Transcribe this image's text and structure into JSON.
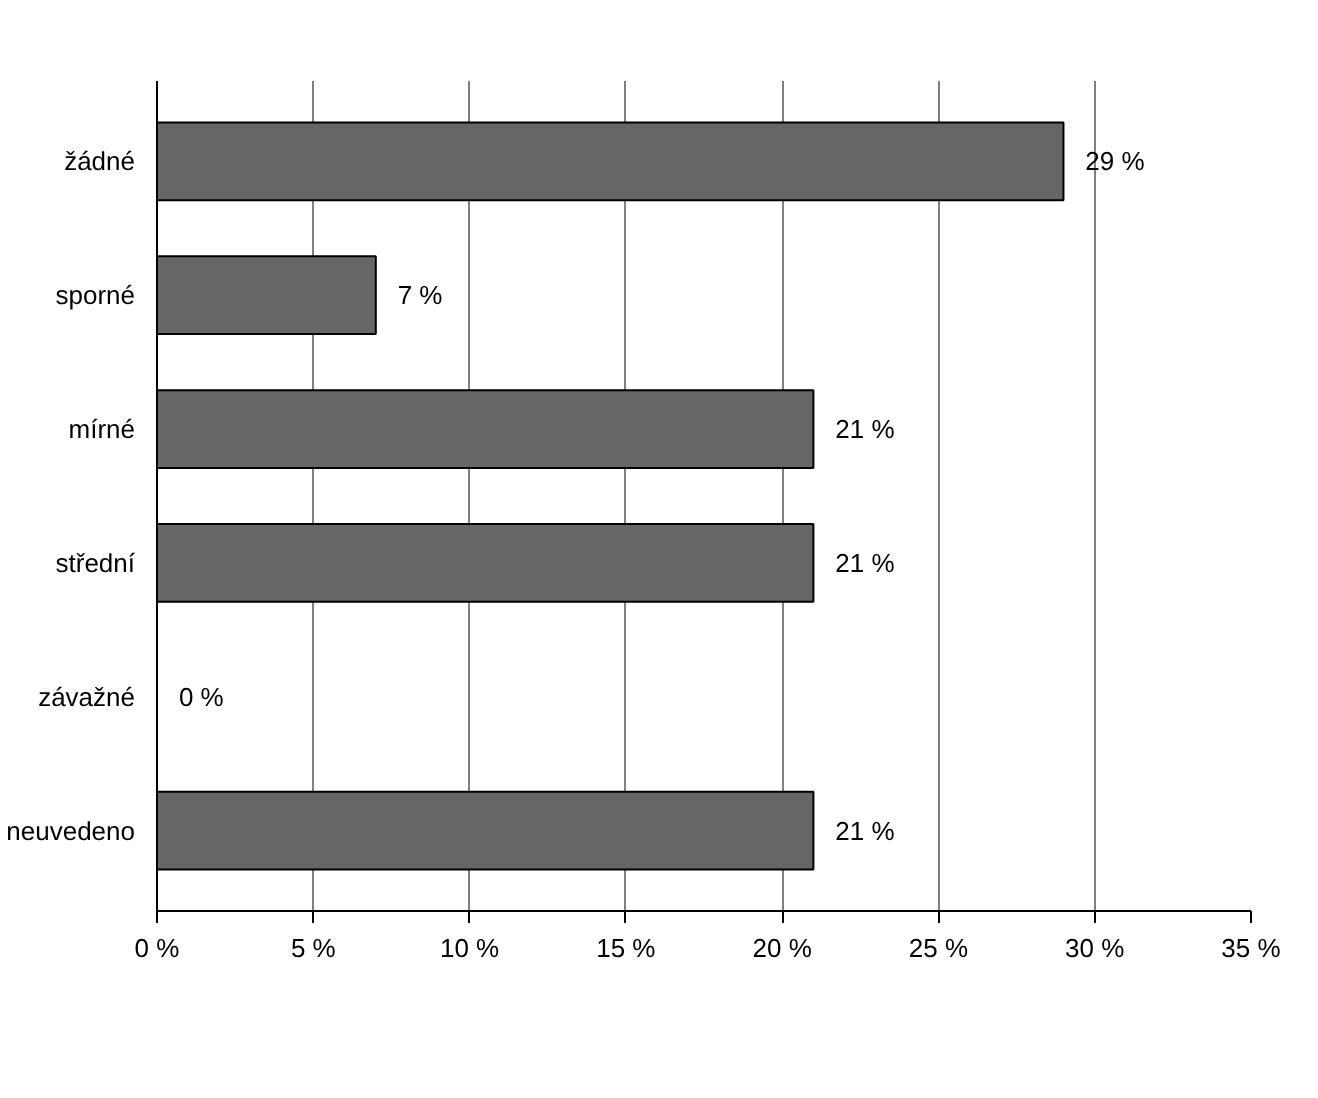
{
  "chart_data": {
    "type": "bar",
    "orientation": "horizontal",
    "categories": [
      "žádné",
      "sporné",
      "mírné",
      "střední",
      "závažné",
      "neuvedeno"
    ],
    "values": [
      29,
      7,
      21,
      21,
      0,
      21
    ],
    "value_labels": [
      "29 %",
      "7 %",
      "21 %",
      "21 %",
      "0 %",
      "21 %"
    ],
    "color": "#666666",
    "xlim": [
      0,
      35
    ],
    "xticks": [
      {
        "value": 0,
        "label": "0 %"
      },
      {
        "value": 5,
        "label": "5 %"
      },
      {
        "value": 10,
        "label": "10 %"
      },
      {
        "value": 15,
        "label": "15 %"
      },
      {
        "value": 20,
        "label": "20 %"
      },
      {
        "value": 25,
        "label": "25 %"
      },
      {
        "value": 30,
        "label": "30 %"
      },
      {
        "value": 35,
        "label": "35 %"
      }
    ],
    "grid": "x"
  }
}
